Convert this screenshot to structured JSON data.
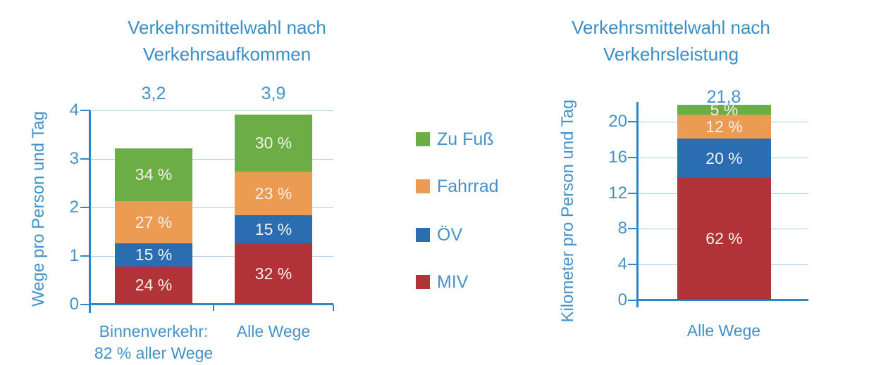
{
  "page": {
    "background": "#FFFFFF"
  },
  "colors": {
    "text_blue": "#4492C9",
    "title_blue": "#3B8EC6",
    "axis_blue": "#2E86C4",
    "gridline_blue": "#A9CBE8",
    "segment_label_white": "#F4F1EC",
    "green_zu_fuss": "#6DAD46",
    "orange_fahrrad": "#EC9C52",
    "blue_oev": "#2A6DB0",
    "red_miv": "#B23337"
  },
  "legend": {
    "items": [
      {
        "label": "Zu Fuß",
        "color": "#6DAD46"
      },
      {
        "label": "Fahrrad",
        "color": "#EC9C52"
      },
      {
        "label": "ÖV",
        "color": "#2A6DB0"
      },
      {
        "label": "MIV",
        "color": "#B23337"
      }
    ]
  },
  "chart_data": [
    {
      "type": "bar",
      "stacked": true,
      "title": "Verkehrsmittelwahl nach Verkehrsaufkommen",
      "title_lines": [
        "Verkehrsmittelwahl nach",
        "Verkehrsaufkommen"
      ],
      "ylabel": "Wege pro Person und Tag",
      "xlabel": "",
      "ylim": [
        0,
        4
      ],
      "yticks": [
        0,
        1,
        2,
        3,
        4
      ],
      "grid": true,
      "legend_position": "right-of-chart (shared)",
      "categories": [
        "Binnenverkehr: 82 % aller Wege",
        "Alle Wege"
      ],
      "category_lines": [
        [
          "Binnenverkehr:",
          "82 % aller Wege"
        ],
        [
          "Alle Wege"
        ]
      ],
      "totals": [
        3.2,
        3.9
      ],
      "total_labels": [
        "3,2",
        "3,9"
      ],
      "series": [
        {
          "name": "MIV",
          "color": "#B23337",
          "percents": [
            24,
            32
          ],
          "labels": [
            "24 %",
            "32 %"
          ]
        },
        {
          "name": "ÖV",
          "color": "#2A6DB0",
          "percents": [
            15,
            15
          ],
          "labels": [
            "15 %",
            "15 %"
          ]
        },
        {
          "name": "Fahrrad",
          "color": "#EC9C52",
          "percents": [
            27,
            23
          ],
          "labels": [
            "27 %",
            "23 %"
          ]
        },
        {
          "name": "Zu Fuß",
          "color": "#6DAD46",
          "percents": [
            34,
            30
          ],
          "labels": [
            "34 %",
            "30 %"
          ]
        }
      ]
    },
    {
      "type": "bar",
      "stacked": true,
      "title": "Verkehrsmittelwahl nach Verkehrsleistung",
      "title_lines": [
        "Verkehrsmittelwahl nach",
        "Verkehrsleistung"
      ],
      "ylabel": "Kilometer pro Person und Tag",
      "xlabel": "",
      "ylim": [
        0,
        22
      ],
      "yticks": [
        0,
        4,
        8,
        12,
        16,
        20
      ],
      "grid": true,
      "categories": [
        "Alle Wege"
      ],
      "category_lines": [
        [
          "Alle Wege"
        ]
      ],
      "totals": [
        21.8
      ],
      "total_labels": [
        "21,8"
      ],
      "series": [
        {
          "name": "MIV",
          "color": "#B23337",
          "percents": [
            62
          ],
          "labels": [
            "62 %"
          ]
        },
        {
          "name": "ÖV",
          "color": "#2A6DB0",
          "percents": [
            20
          ],
          "labels": [
            "20 %"
          ]
        },
        {
          "name": "Fahrrad",
          "color": "#EC9C52",
          "percents": [
            12
          ],
          "labels": [
            "12 %"
          ]
        },
        {
          "name": "Zu Fuß",
          "color": "#6DAD46",
          "percents": [
            5
          ],
          "labels": [
            "5 %"
          ]
        }
      ]
    }
  ]
}
